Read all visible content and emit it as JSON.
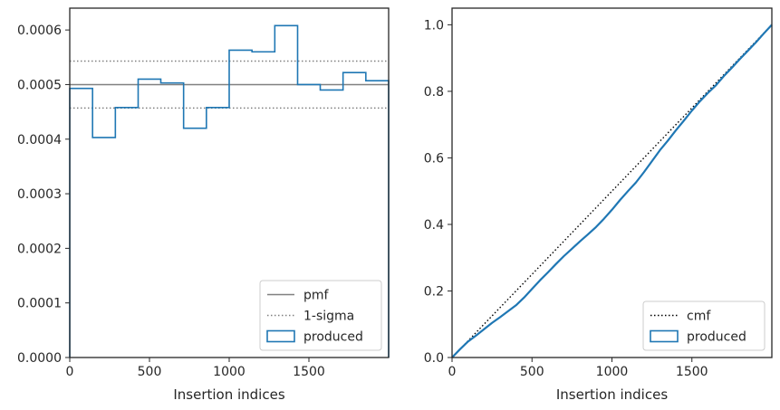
{
  "chart_data": [
    {
      "type": "histogram",
      "xlabel": "Insertion indices",
      "ylabel": "",
      "xlim": [
        0,
        2000
      ],
      "ylim": [
        0,
        0.00064
      ],
      "xticks": [
        0,
        500,
        1000,
        1500
      ],
      "xtick_labels": [
        "0",
        "500",
        "1000",
        "1500"
      ],
      "yticks": [
        0,
        0.0001,
        0.0002,
        0.0003,
        0.0004,
        0.0005,
        0.0006
      ],
      "ytick_labels": [
        "0.0000",
        "0.0001",
        "0.0002",
        "0.0003",
        "0.0004",
        "0.0005",
        "0.0006"
      ],
      "bin_edges": [
        0,
        143,
        286,
        429,
        571,
        714,
        857,
        1000,
        1143,
        1286,
        1429,
        1571,
        1714,
        1857,
        2000
      ],
      "produced_density": [
        0.000493,
        0.000403,
        0.000458,
        0.00051,
        0.000503,
        0.00042,
        0.000458,
        0.000563,
        0.00056,
        0.000608,
        0.0005,
        0.00049,
        0.000522,
        0.000507
      ],
      "pmf": 0.0005,
      "one_sigma": [
        0.000457,
        0.000543
      ],
      "legend": {
        "position": "lower right",
        "entries": [
          {
            "label": "pmf",
            "style": "solid",
            "color": "#808080"
          },
          {
            "label": "1-sigma",
            "style": "dotted",
            "color": "#808080"
          },
          {
            "label": "produced",
            "style": "patch",
            "color": "#1f77b4"
          }
        ]
      }
    },
    {
      "type": "line",
      "xlabel": "Insertion indices",
      "ylabel": "",
      "xlim": [
        0,
        2000
      ],
      "ylim": [
        0,
        1.05
      ],
      "xticks": [
        0,
        500,
        1000,
        1500
      ],
      "xtick_labels": [
        "0",
        "500",
        "1000",
        "1500"
      ],
      "yticks": [
        0,
        0.2,
        0.4,
        0.6,
        0.8,
        1.0
      ],
      "ytick_labels": [
        "0.0",
        "0.2",
        "0.4",
        "0.6",
        "0.8",
        "1.0"
      ],
      "series": [
        {
          "name": "cmf",
          "style": "dotted",
          "color": "#000000",
          "x": [
            0,
            2000
          ],
          "y": [
            0,
            1.0
          ]
        },
        {
          "name": "produced",
          "style": "step",
          "color": "#1f77b4",
          "x": [
            0,
            50,
            100,
            150,
            200,
            250,
            300,
            350,
            400,
            450,
            500,
            550,
            600,
            650,
            700,
            750,
            800,
            850,
            900,
            950,
            1000,
            1050,
            1100,
            1150,
            1200,
            1250,
            1300,
            1350,
            1400,
            1450,
            1500,
            1550,
            1600,
            1650,
            1700,
            1750,
            1800,
            1850,
            1900,
            1950,
            2000
          ],
          "y": [
            0,
            0.025,
            0.048,
            0.066,
            0.085,
            0.104,
            0.121,
            0.139,
            0.157,
            0.18,
            0.206,
            0.232,
            0.256,
            0.281,
            0.305,
            0.327,
            0.349,
            0.37,
            0.392,
            0.417,
            0.444,
            0.473,
            0.5,
            0.526,
            0.557,
            0.59,
            0.623,
            0.652,
            0.683,
            0.712,
            0.742,
            0.77,
            0.795,
            0.818,
            0.846,
            0.871,
            0.897,
            0.922,
            0.947,
            0.974,
            1.0
          ]
        }
      ],
      "legend": {
        "position": "lower right",
        "entries": [
          {
            "label": "cmf",
            "style": "dotted",
            "color": "#000000"
          },
          {
            "label": "produced",
            "style": "patch",
            "color": "#1f77b4"
          }
        ]
      }
    }
  ]
}
